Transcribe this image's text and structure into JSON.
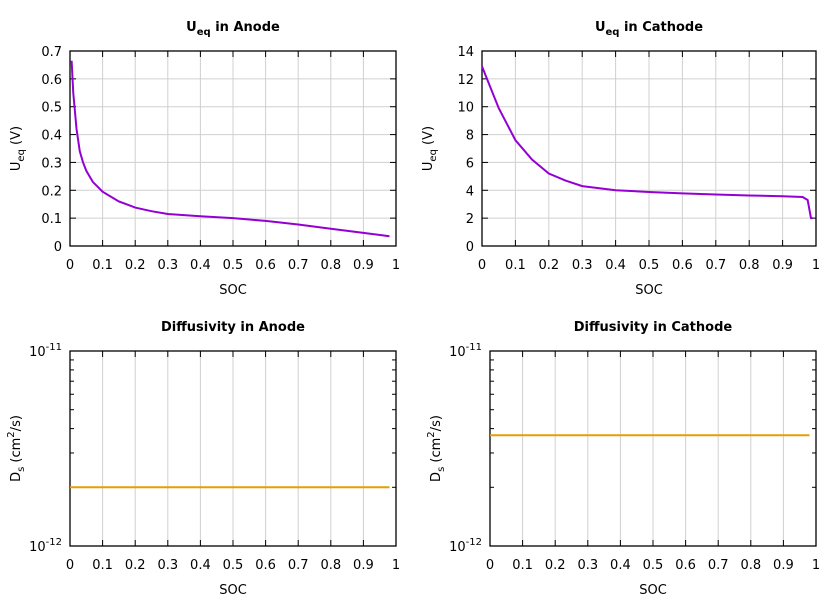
{
  "chart_data": [
    {
      "type": "line",
      "title": {
        "main": "U",
        "sub": "eq",
        "rest": " in Anode"
      },
      "xlabel": "SOC",
      "ylabel": {
        "main": "U",
        "sub": "eq",
        "rest": " (V)"
      },
      "xlim": [
        0,
        1
      ],
      "ylim": [
        0,
        0.7
      ],
      "yscale": "linear",
      "grid": true,
      "xticks": [
        "0",
        "0.1",
        "0.2",
        "0.3",
        "0.4",
        "0.5",
        "0.6",
        "0.7",
        "0.8",
        "0.9",
        "1"
      ],
      "yticks": [
        "0",
        "0.1",
        "0.2",
        "0.3",
        "0.4",
        "0.5",
        "0.6",
        "0.7"
      ],
      "color": "#9400d3",
      "x": [
        0.005,
        0.01,
        0.02,
        0.03,
        0.04,
        0.05,
        0.07,
        0.1,
        0.15,
        0.2,
        0.25,
        0.3,
        0.4,
        0.5,
        0.6,
        0.7,
        0.8,
        0.9,
        0.98
      ],
      "y": [
        0.665,
        0.55,
        0.42,
        0.34,
        0.3,
        0.27,
        0.23,
        0.195,
        0.16,
        0.138,
        0.125,
        0.115,
        0.107,
        0.1,
        0.09,
        0.077,
        0.062,
        0.047,
        0.035
      ]
    },
    {
      "type": "line",
      "title": {
        "main": "U",
        "sub": "eq",
        "rest": " in Cathode"
      },
      "xlabel": "SOC",
      "ylabel": {
        "main": "U",
        "sub": "eq",
        "rest": " (V)"
      },
      "xlim": [
        0,
        1
      ],
      "ylim": [
        0,
        14
      ],
      "yscale": "linear",
      "grid": true,
      "xticks": [
        "0",
        "0.1",
        "0.2",
        "0.3",
        "0.4",
        "0.5",
        "0.6",
        "0.7",
        "0.8",
        "0.9",
        "1"
      ],
      "yticks": [
        "0",
        "2",
        "4",
        "6",
        "8",
        "10",
        "12",
        "14"
      ],
      "color": "#9400d3",
      "x": [
        0,
        0.05,
        0.1,
        0.15,
        0.2,
        0.25,
        0.3,
        0.4,
        0.5,
        0.6,
        0.7,
        0.8,
        0.9,
        0.96,
        0.975,
        0.985,
        0.99
      ],
      "y": [
        12.9,
        9.9,
        7.6,
        6.2,
        5.2,
        4.7,
        4.3,
        4.0,
        3.88,
        3.78,
        3.7,
        3.63,
        3.57,
        3.52,
        3.3,
        2.0,
        2.0
      ]
    },
    {
      "type": "line",
      "title": {
        "main": "Diffusivity in Anode",
        "sub": "",
        "rest": ""
      },
      "xlabel": "SOC",
      "ylabel": {
        "main": "D",
        "sub": "s",
        "rest": " (cm",
        "sup": "2",
        "rest2": "/s)"
      },
      "xlim": [
        0,
        1
      ],
      "ylim": [
        1e-12,
        1e-11
      ],
      "yscale": "log",
      "grid": true,
      "xticks": [
        "0",
        "0.1",
        "0.2",
        "0.3",
        "0.4",
        "0.5",
        "0.6",
        "0.7",
        "0.8",
        "0.9",
        "1"
      ],
      "yticks": [
        {
          "base": "10",
          "exp": "-12"
        },
        {
          "base": "10",
          "exp": "-11"
        }
      ],
      "color": "#e69f00",
      "x": [
        0,
        0.98
      ],
      "y": [
        2e-12,
        2e-12
      ]
    },
    {
      "type": "line",
      "title": {
        "main": "Diffusivity in Cathode",
        "sub": "",
        "rest": ""
      },
      "xlabel": "SOC",
      "ylabel": {
        "main": "D",
        "sub": "s",
        "rest": " (cm",
        "sup": "2",
        "rest2": "/s)"
      },
      "xlim": [
        0,
        1
      ],
      "ylim": [
        1e-12,
        1e-11
      ],
      "yscale": "log",
      "grid": true,
      "xticks": [
        "0",
        "0.1",
        "0.2",
        "0.3",
        "0.4",
        "0.5",
        "0.6",
        "0.7",
        "0.8",
        "0.9",
        "1"
      ],
      "yticks": [
        {
          "base": "10",
          "exp": "-12"
        },
        {
          "base": "10",
          "exp": "-11"
        }
      ],
      "color": "#e69f00",
      "x": [
        0,
        0.98
      ],
      "y": [
        3.7e-12,
        3.7e-12
      ]
    }
  ]
}
